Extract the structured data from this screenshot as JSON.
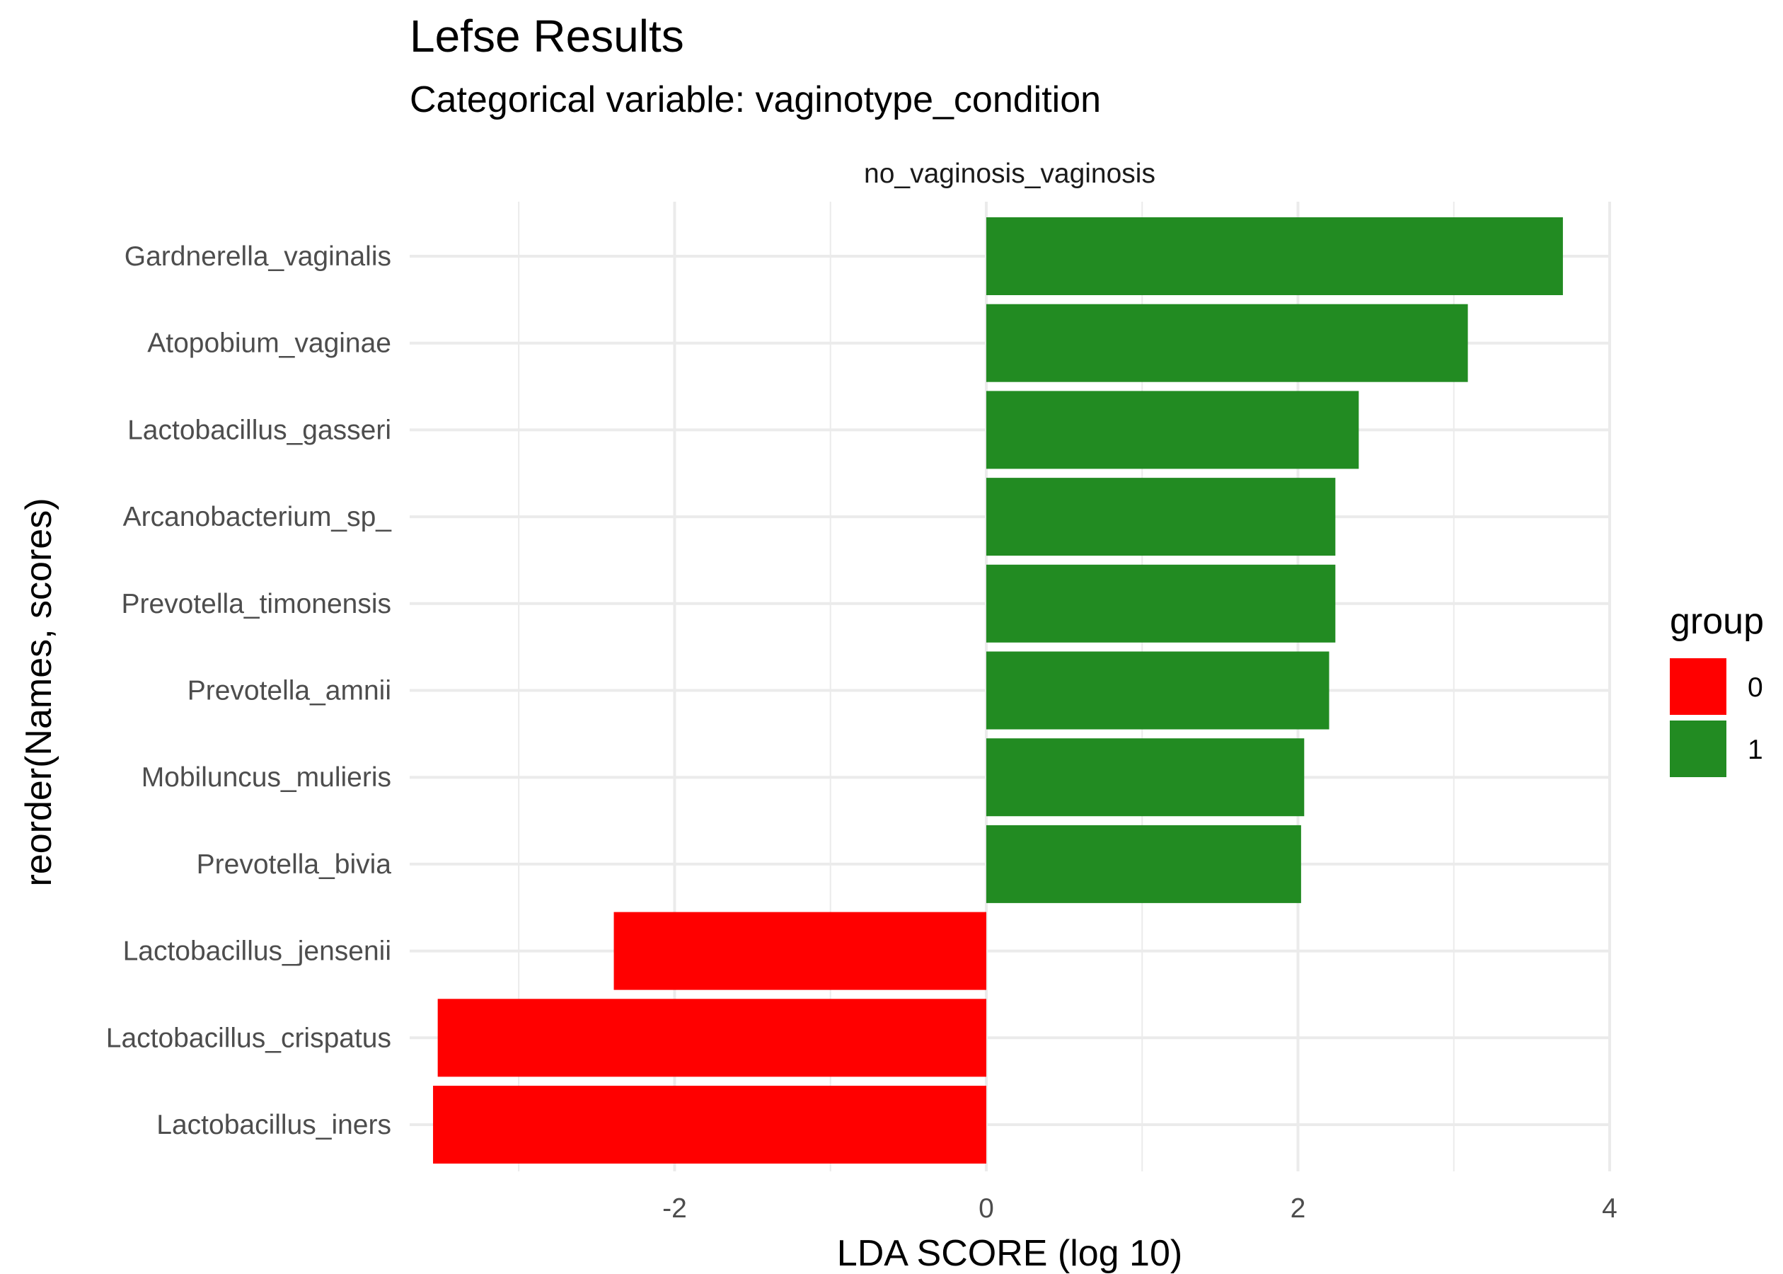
{
  "chart_data": {
    "type": "bar",
    "orientation": "horizontal",
    "title": "Lefse Results",
    "subtitle": "Categorical variable: vaginotype_condition",
    "facet_label": "no_vaginosis_vaginosis",
    "xlabel": "LDA SCORE (log 10)",
    "ylabel": "reorder(Names, scores)",
    "xlim": [
      -3.7,
      4.0
    ],
    "x_ticks": [
      -2,
      0,
      2,
      4
    ],
    "x_tick_labels": [
      "-2",
      "0",
      "2",
      "4"
    ],
    "grid": true,
    "legend": {
      "title": "group",
      "position": "right",
      "entries": [
        {
          "label": "0",
          "color": "#ff0000"
        },
        {
          "label": "1",
          "color": "#228b22"
        }
      ]
    },
    "bars": [
      {
        "name": "Gardnerella_vaginalis",
        "value": 3.7,
        "group": "1"
      },
      {
        "name": "Atopobium_vaginae",
        "value": 3.09,
        "group": "1"
      },
      {
        "name": "Lactobacillus_gasseri",
        "value": 2.39,
        "group": "1"
      },
      {
        "name": "Arcanobacterium_sp_",
        "value": 2.24,
        "group": "1"
      },
      {
        "name": "Prevotella_timonensis",
        "value": 2.24,
        "group": "1"
      },
      {
        "name": "Prevotella_amnii",
        "value": 2.2,
        "group": "1"
      },
      {
        "name": "Mobiluncus_mulieris",
        "value": 2.04,
        "group": "1"
      },
      {
        "name": "Prevotella_bivia",
        "value": 2.02,
        "group": "1"
      },
      {
        "name": "Lactobacillus_jensenii",
        "value": -2.39,
        "group": "0"
      },
      {
        "name": "Lactobacillus_crispatus",
        "value": -3.52,
        "group": "0"
      },
      {
        "name": "Lactobacillus_iners",
        "value": -3.55,
        "group": "0"
      }
    ]
  }
}
